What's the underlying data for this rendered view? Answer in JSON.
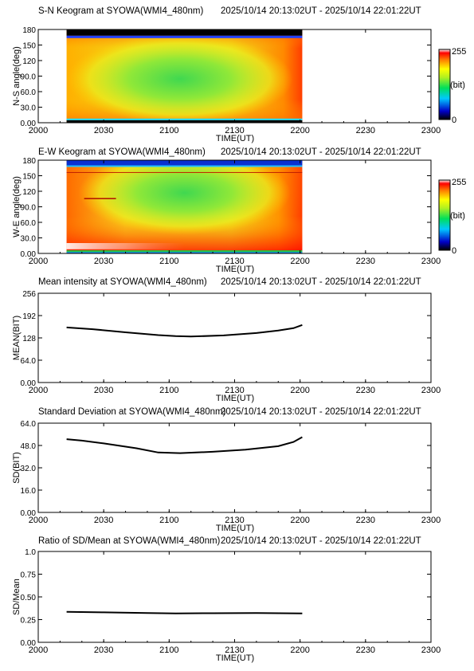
{
  "colors": {
    "axis": "#000000",
    "line": "#000000",
    "background": "#ffffff"
  },
  "chart_data": [
    {
      "type": "heatmap",
      "title": "S-N Keogram at SYOWA(WMI4_480nm)",
      "time_range": "2025/10/14 20:13:02UT - 2025/10/14 22:01:22UT",
      "xlabel": "TIME(UT)",
      "ylabel": "N-S angle(deg)",
      "x_ticks": [
        "2000",
        "2030",
        "2100",
        "2130",
        "2200",
        "2230",
        "2300"
      ],
      "y_ticks": [
        "0.00",
        "30.0",
        "60.0",
        "90.0",
        "120",
        "150",
        "180"
      ],
      "xlim": [
        0,
        180
      ],
      "ylim": [
        0,
        180
      ],
      "data_x_range": [
        13,
        121
      ],
      "colorbar": {
        "min_label": "0",
        "max_label": "255",
        "unit_label": "(bit)"
      }
    },
    {
      "type": "heatmap",
      "title": "E-W Keogram at SYOWA(WMI4_480nm)",
      "time_range": "2025/10/14 20:13:02UT - 2025/10/14 22:01:22UT",
      "xlabel": "TIME(UT)",
      "ylabel": "W-E angle(deg)",
      "x_ticks": [
        "2000",
        "2030",
        "2100",
        "2130",
        "2200",
        "2230",
        "2300"
      ],
      "y_ticks": [
        "0.00",
        "30.0",
        "60.0",
        "90.0",
        "120",
        "150",
        "180"
      ],
      "xlim": [
        0,
        180
      ],
      "ylim": [
        0,
        180
      ],
      "data_x_range": [
        13,
        121
      ],
      "colorbar": {
        "min_label": "0",
        "max_label": "255",
        "unit_label": "(bit)"
      }
    },
    {
      "type": "line",
      "title": "Mean intensity at SYOWA(WMI4_480nm)",
      "time_range": "2025/10/14 20:13:02UT - 2025/10/14 22:01:22UT",
      "xlabel": "TIME(UT)",
      "ylabel": "MEAN(BIT)",
      "x_ticks": [
        "2000",
        "2030",
        "2100",
        "2130",
        "2200",
        "2230",
        "2300"
      ],
      "y_ticks": [
        "0.00",
        "64.0",
        "128",
        "192",
        "256"
      ],
      "xlim": [
        0,
        180
      ],
      "ylim": [
        0,
        256
      ],
      "series": [
        {
          "x": [
            13,
            25,
            40,
            55,
            63,
            70,
            85,
            100,
            110,
            117,
            121
          ],
          "y": [
            158,
            153,
            144,
            136,
            133,
            132,
            135,
            142,
            149,
            156,
            165
          ]
        }
      ]
    },
    {
      "type": "line",
      "title": "Standard Deviation at SYOWA(WMI4_480nm)",
      "time_range": "2025/10/14 20:13:02UT - 2025/10/14 22:01:22UT",
      "xlabel": "TIME(UT)",
      "ylabel": "SD(BIT)",
      "x_ticks": [
        "2000",
        "2030",
        "2100",
        "2130",
        "2200",
        "2230",
        "2300"
      ],
      "y_ticks": [
        "0.00",
        "16.0",
        "32.0",
        "48.0",
        "64.0"
      ],
      "xlim": [
        0,
        180
      ],
      "ylim": [
        0,
        64
      ],
      "series": [
        {
          "x": [
            13,
            20,
            30,
            45,
            55,
            65,
            80,
            95,
            110,
            117,
            121
          ],
          "y": [
            52.5,
            51.5,
            49.5,
            46,
            43,
            42.5,
            43.5,
            45,
            47.5,
            50.5,
            54
          ]
        }
      ]
    },
    {
      "type": "line",
      "title": "Ratio of SD/Mean at SYOWA(WMI4_480nm)",
      "time_range": "2025/10/14 20:13:02UT - 2025/10/14 22:01:22UT",
      "xlabel": "TIME(UT)",
      "ylabel": "SD/Mean",
      "x_ticks": [
        "2000",
        "2030",
        "2100",
        "2130",
        "2200",
        "2230",
        "2300"
      ],
      "y_ticks": [
        "0.00",
        "0.25",
        "0.50",
        "0.75",
        "1.0"
      ],
      "xlim": [
        0,
        180
      ],
      "ylim": [
        0,
        1
      ],
      "series": [
        {
          "x": [
            13,
            30,
            50,
            63,
            80,
            100,
            121
          ],
          "y": [
            0.335,
            0.33,
            0.322,
            0.318,
            0.32,
            0.322,
            0.318
          ]
        }
      ]
    }
  ]
}
